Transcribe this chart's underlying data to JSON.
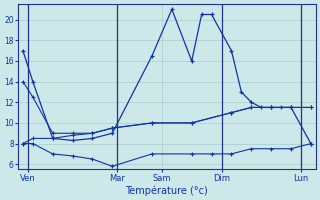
{
  "xlabel": "Température (°c)",
  "background_color": "#cce8e8",
  "grid_color": "#aacccc",
  "line_color": "#1133aa",
  "ylim": [
    5.5,
    21.5
  ],
  "xlim": [
    -0.5,
    29.5
  ],
  "yticks": [
    6,
    8,
    10,
    12,
    14,
    16,
    18,
    20
  ],
  "day_x": [
    0.5,
    9.5,
    14,
    20,
    28
  ],
  "day_labels": [
    "Ven",
    "Mar",
    "Sam",
    "Dim",
    "Lun"
  ],
  "max_x": [
    0,
    1,
    3,
    5,
    7,
    9,
    13,
    15,
    17,
    18,
    19,
    21,
    22,
    23,
    24,
    25,
    26,
    27,
    29
  ],
  "max_y": [
    17,
    14,
    8.5,
    8.3,
    8.5,
    9.0,
    16.5,
    21.0,
    16.0,
    20.5,
    20.5,
    17.0,
    13.0,
    12.0,
    11.5,
    11.5,
    11.5,
    11.5,
    8.0
  ],
  "min_x": [
    0,
    1,
    3,
    5,
    7,
    9,
    13,
    17,
    19,
    21,
    23,
    25,
    27,
    29
  ],
  "min_y": [
    8.0,
    8.0,
    7.0,
    6.8,
    6.5,
    5.8,
    7.0,
    7.0,
    7.0,
    7.0,
    7.5,
    7.5,
    7.5,
    8.0
  ],
  "trend1_x": [
    0,
    1,
    3,
    5,
    7,
    9,
    13,
    17,
    21,
    23,
    25,
    27,
    29
  ],
  "trend1_y": [
    14.0,
    12.5,
    9.0,
    9.0,
    9.0,
    9.5,
    10.0,
    10.0,
    11.0,
    11.5,
    11.5,
    11.5,
    11.5
  ],
  "trend2_x": [
    0,
    1,
    3,
    5,
    7,
    9,
    13,
    17,
    21,
    23,
    25,
    27,
    29
  ],
  "trend2_y": [
    8.0,
    8.5,
    8.5,
    8.8,
    9.0,
    9.5,
    10.0,
    10.0,
    11.0,
    11.5,
    11.5,
    11.5,
    11.5
  ]
}
